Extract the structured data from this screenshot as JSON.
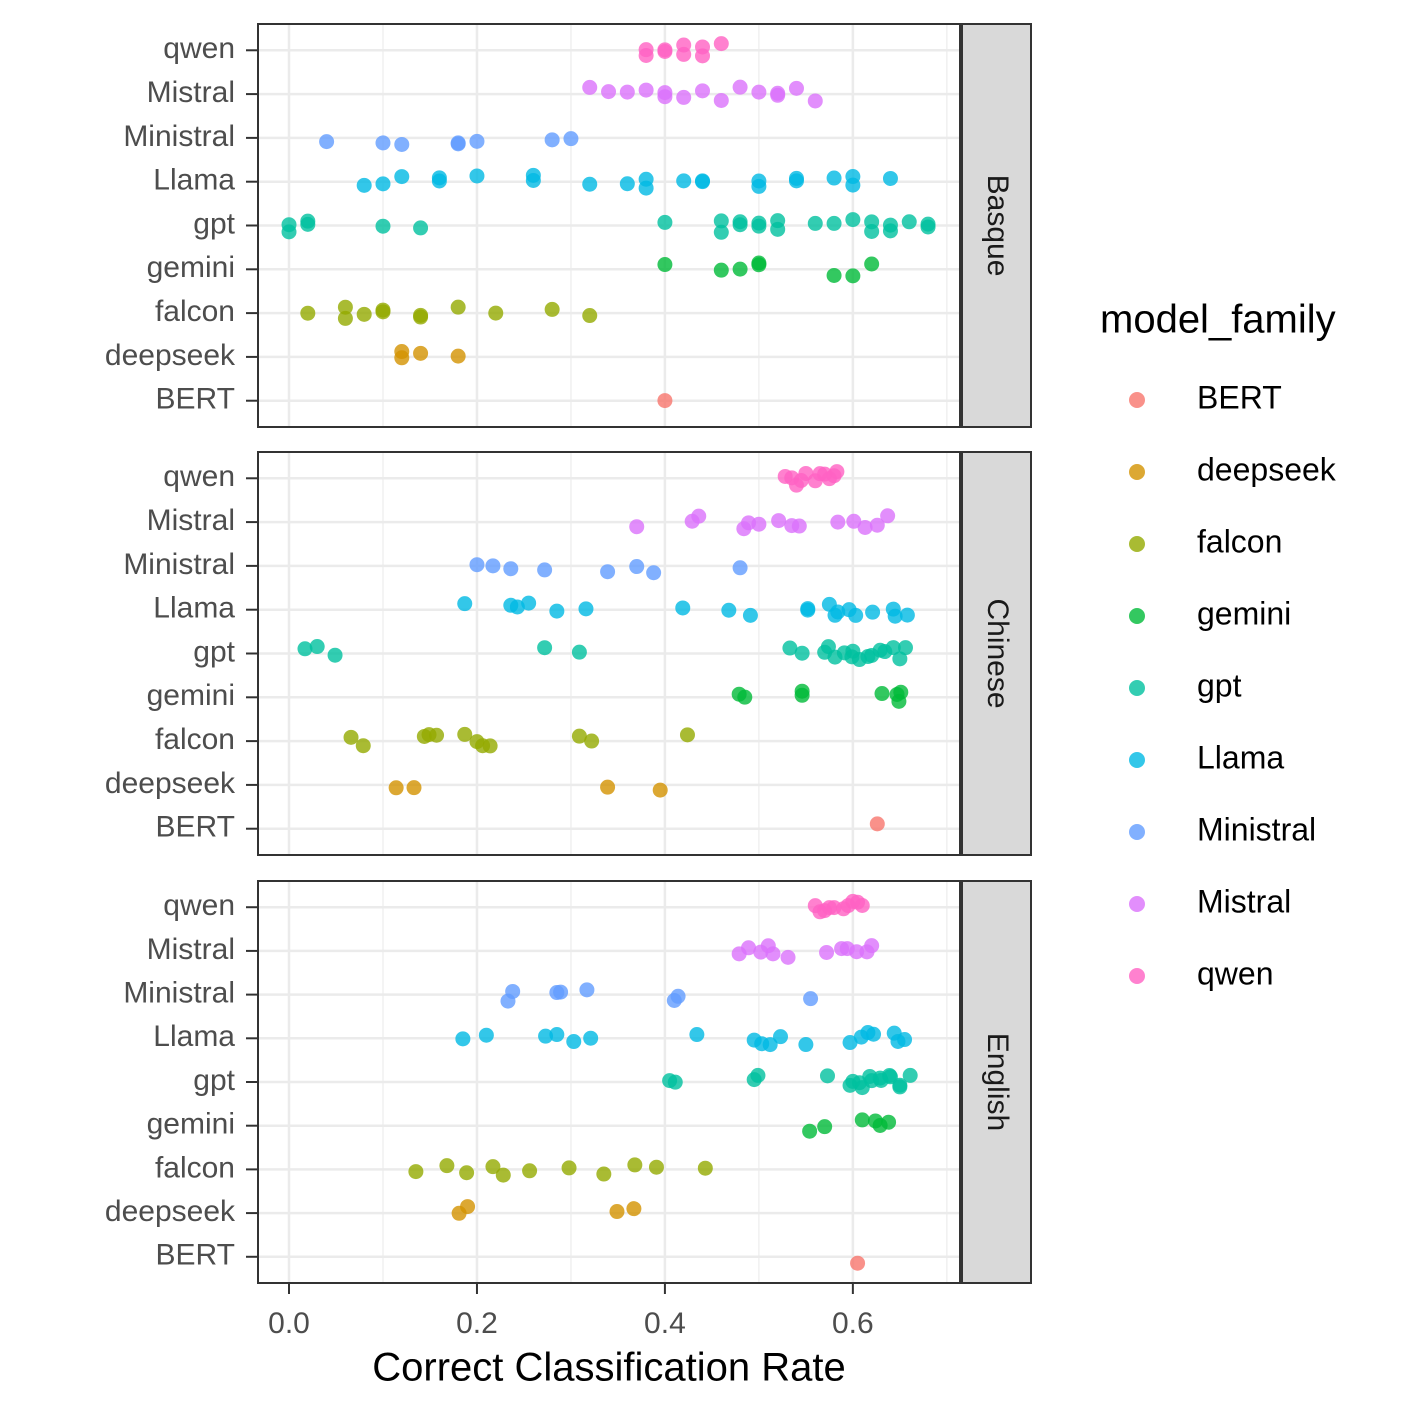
{
  "chart_data": {
    "type": "scatter",
    "xlabel": "Correct Classification Rate",
    "legend_title": "model_family",
    "facets": [
      "Basque",
      "Chinese",
      "English"
    ],
    "xlim": [
      -0.033,
      0.714
    ],
    "xticks": [
      {
        "value": 0,
        "label": "0.0"
      },
      {
        "value": 0.2,
        "label": "0.2"
      },
      {
        "value": 0.4,
        "label": "0.4"
      },
      {
        "value": 0.6,
        "label": "0.6"
      }
    ],
    "grid": true,
    "series": [
      {
        "name": "BERT",
        "color": "#F8766D",
        "values": [
          [
            0.4
          ],
          [
            0.626
          ],
          [
            0.605
          ]
        ]
      },
      {
        "name": "deepseek",
        "color": "#D39200",
        "values": [
          [
            0.12,
            0.12,
            0.14,
            0.18
          ],
          [
            0.114,
            0.133,
            0.339,
            0.395
          ],
          [
            0.181,
            0.19,
            0.349,
            0.367
          ]
        ]
      },
      {
        "name": "falcon",
        "color": "#93AA00",
        "values": [
          [
            0.02,
            0.06,
            0.06,
            0.08,
            0.1,
            0.1,
            0.14,
            0.14,
            0.18,
            0.22,
            0.28,
            0.32
          ],
          [
            0.066,
            0.079,
            0.144,
            0.149,
            0.157,
            0.187,
            0.2,
            0.206,
            0.214,
            0.309,
            0.322,
            0.424
          ],
          [
            0.135,
            0.168,
            0.189,
            0.217,
            0.228,
            0.256,
            0.298,
            0.335,
            0.368,
            0.391,
            0.443
          ]
        ]
      },
      {
        "name": "gemini",
        "color": "#00BA38",
        "values": [
          [
            0.4,
            0.46,
            0.48,
            0.5,
            0.5,
            0.58,
            0.6,
            0.62
          ],
          [
            0.479,
            0.485,
            0.546,
            0.546,
            0.631,
            0.647,
            0.649,
            0.651
          ],
          [
            0.554,
            0.57,
            0.61,
            0.624,
            0.629,
            0.638
          ]
        ]
      },
      {
        "name": "gpt",
        "color": "#00C19F",
        "values": [
          [
            0,
            0,
            0.02,
            0.02,
            0.1,
            0.14,
            0.4,
            0.46,
            0.46,
            0.48,
            0.48,
            0.5,
            0.5,
            0.52,
            0.52,
            0.56,
            0.58,
            0.6,
            0.62,
            0.62,
            0.64,
            0.64,
            0.66,
            0.68,
            0.68
          ],
          [
            0.017,
            0.03,
            0.049,
            0.272,
            0.309,
            0.533,
            0.546,
            0.57,
            0.574,
            0.581,
            0.591,
            0.599,
            0.6,
            0.607,
            0.616,
            0.62,
            0.629,
            0.634,
            0.643,
            0.65,
            0.656
          ],
          [
            0.405,
            0.411,
            0.495,
            0.499,
            0.573,
            0.597,
            0.6,
            0.607,
            0.61,
            0.618,
            0.62,
            0.629,
            0.63,
            0.639,
            0.64,
            0.65,
            0.65,
            0.661
          ]
        ]
      },
      {
        "name": "Llama",
        "color": "#00B9E3",
        "values": [
          [
            0.08,
            0.1,
            0.12,
            0.16,
            0.16,
            0.2,
            0.26,
            0.26,
            0.32,
            0.36,
            0.38,
            0.38,
            0.42,
            0.44,
            0.44,
            0.5,
            0.5,
            0.54,
            0.54,
            0.58,
            0.6,
            0.6,
            0.64
          ],
          [
            0.187,
            0.236,
            0.243,
            0.255,
            0.285,
            0.316,
            0.419,
            0.468,
            0.491,
            0.552,
            0.552,
            0.575,
            0.581,
            0.584,
            0.596,
            0.603,
            0.621,
            0.643,
            0.645,
            0.658
          ],
          [
            0.185,
            0.21,
            0.273,
            0.285,
            0.303,
            0.321,
            0.434,
            0.495,
            0.503,
            0.512,
            0.523,
            0.55,
            0.597,
            0.609,
            0.616,
            0.622,
            0.644,
            0.648,
            0.655
          ]
        ]
      },
      {
        "name": "Ministral",
        "color": "#619CFF",
        "values": [
          [
            0.04,
            0.1,
            0.12,
            0.18,
            0.18,
            0.2,
            0.28,
            0.3
          ],
          [
            0.2,
            0.217,
            0.236,
            0.272,
            0.339,
            0.37,
            0.388,
            0.48
          ],
          [
            0.233,
            0.238,
            0.285,
            0.289,
            0.317,
            0.41,
            0.414,
            0.555
          ]
        ]
      },
      {
        "name": "Mistral",
        "color": "#DB72FB",
        "values": [
          [
            0.32,
            0.34,
            0.36,
            0.38,
            0.4,
            0.4,
            0.42,
            0.44,
            0.46,
            0.48,
            0.5,
            0.52,
            0.52,
            0.54,
            0.56
          ],
          [
            0.37,
            0.429,
            0.436,
            0.484,
            0.489,
            0.5,
            0.521,
            0.535,
            0.543,
            0.584,
            0.601,
            0.613,
            0.626,
            0.637
          ],
          [
            0.479,
            0.489,
            0.502,
            0.51,
            0.515,
            0.531,
            0.572,
            0.588,
            0.594,
            0.604,
            0.615,
            0.62
          ]
        ]
      },
      {
        "name": "qwen",
        "color": "#FF61C3",
        "values": [
          [
            0.38,
            0.38,
            0.4,
            0.4,
            0.42,
            0.42,
            0.44,
            0.44,
            0.46
          ],
          [
            0.528,
            0.535,
            0.54,
            0.545,
            0.55,
            0.56,
            0.565,
            0.57,
            0.575,
            0.58,
            0.583
          ],
          [
            0.56,
            0.565,
            0.57,
            0.575,
            0.58,
            0.59,
            0.595,
            0.6,
            0.605,
            0.61
          ]
        ]
      }
    ]
  }
}
